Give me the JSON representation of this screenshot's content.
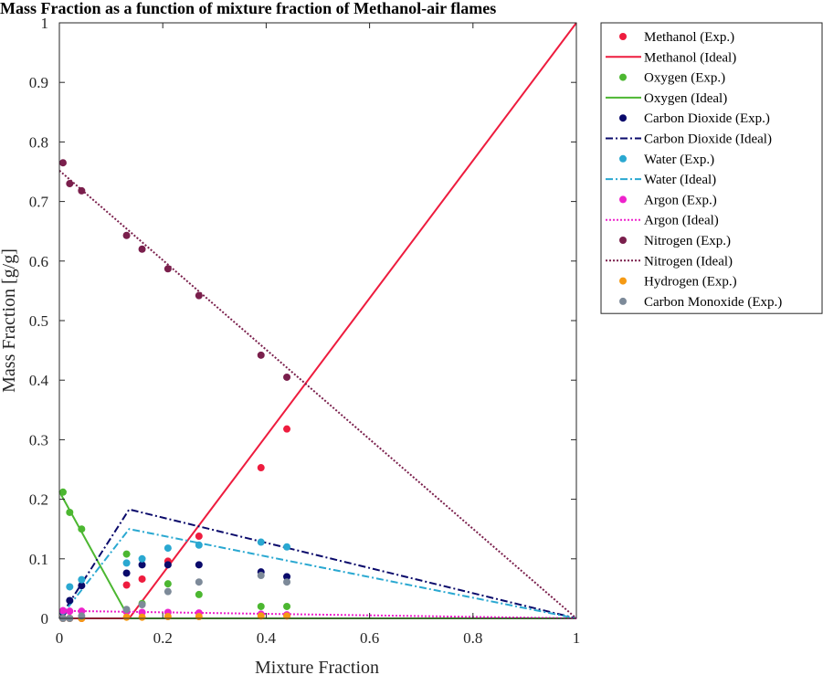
{
  "chart_data": {
    "type": "scatter",
    "title": "Mass Fraction as a function of mixture fraction of Methanol-air flames",
    "xlabel": "Mixture Fraction",
    "ylabel": "Mass Fraction [g/g]",
    "xlim": [
      0,
      1
    ],
    "ylim": [
      0,
      1
    ],
    "xticks": [
      0,
      0.2,
      0.4,
      0.6,
      0.8,
      1
    ],
    "xtick_labels": [
      "0",
      "0.2",
      "0.4",
      "0.6",
      "0.8",
      "1"
    ],
    "yticks": [
      0,
      0.1,
      0.2,
      0.3,
      0.4,
      0.5,
      0.6,
      0.7,
      0.8,
      0.9,
      1
    ],
    "ytick_labels": [
      "0",
      "0.1",
      "0.2",
      "0.3",
      "0.4",
      "0.5",
      "0.6",
      "0.7",
      "0.8",
      "0.9",
      "1"
    ],
    "grid": false,
    "legend_position": "outside-right",
    "series": [
      {
        "name": "Methanol (Exp.)",
        "kind": "points",
        "color": "#ee1c3e",
        "x": [
          0.007,
          0.02,
          0.043,
          0.13,
          0.16,
          0.21,
          0.27,
          0.39,
          0.44
        ],
        "y": [
          0.0,
          0.0,
          0.0,
          0.056,
          0.066,
          0.096,
          0.138,
          0.253,
          0.318
        ]
      },
      {
        "name": "Methanol (Ideal)",
        "kind": "line",
        "dash": "solid",
        "color": "#ee1c3e",
        "x": [
          0,
          0.135,
          1
        ],
        "y": [
          0,
          0,
          1
        ]
      },
      {
        "name": "Oxygen (Exp.)",
        "kind": "points",
        "color": "#4cb731",
        "x": [
          0.007,
          0.02,
          0.043,
          0.13,
          0.16,
          0.21,
          0.27,
          0.39,
          0.44
        ],
        "y": [
          0.212,
          0.178,
          0.15,
          0.108,
          0.025,
          0.058,
          0.04,
          0.02,
          0.02
        ]
      },
      {
        "name": "Oxygen (Ideal)",
        "kind": "line",
        "dash": "solid",
        "color": "#4cb731",
        "x": [
          0,
          0.135,
          1
        ],
        "y": [
          0.213,
          0,
          0
        ]
      },
      {
        "name": "Carbon Dioxide (Exp.)",
        "kind": "points",
        "color": "#0a0a6b",
        "x": [
          0.007,
          0.02,
          0.043,
          0.13,
          0.16,
          0.21,
          0.27,
          0.39,
          0.44
        ],
        "y": [
          0.01,
          0.03,
          0.055,
          0.076,
          0.09,
          0.09,
          0.09,
          0.078,
          0.07
        ]
      },
      {
        "name": "Carbon Dioxide (Ideal)",
        "kind": "line",
        "dash": "dashdot",
        "color": "#0a0a6b",
        "x": [
          0,
          0.135,
          1
        ],
        "y": [
          0,
          0.183,
          0
        ]
      },
      {
        "name": "Water (Exp.)",
        "kind": "points",
        "color": "#2aa8d1",
        "x": [
          0.007,
          0.02,
          0.043,
          0.13,
          0.16,
          0.21,
          0.27,
          0.39,
          0.44
        ],
        "y": [
          0.012,
          0.053,
          0.065,
          0.093,
          0.1,
          0.118,
          0.123,
          0.128,
          0.12
        ]
      },
      {
        "name": "Water (Ideal)",
        "kind": "line",
        "dash": "dashdot",
        "color": "#2aa8d1",
        "x": [
          0,
          0.135,
          1
        ],
        "y": [
          0,
          0.15,
          0
        ]
      },
      {
        "name": "Argon (Exp.)",
        "kind": "points",
        "color": "#ee22cc",
        "x": [
          0.007,
          0.02,
          0.043,
          0.13,
          0.16,
          0.21,
          0.27,
          0.39,
          0.44
        ],
        "y": [
          0.013,
          0.012,
          0.012,
          0.011,
          0.01,
          0.01,
          0.009,
          0.007,
          0.006
        ]
      },
      {
        "name": "Argon (Ideal)",
        "kind": "line",
        "dash": "dotted",
        "color": "#ee22cc",
        "x": [
          0,
          1
        ],
        "y": [
          0.0128,
          0
        ]
      },
      {
        "name": "Nitrogen (Exp.)",
        "kind": "points",
        "color": "#7a1f4c",
        "x": [
          0.007,
          0.02,
          0.043,
          0.13,
          0.16,
          0.21,
          0.27,
          0.39,
          0.44
        ],
        "y": [
          0.765,
          0.73,
          0.718,
          0.643,
          0.62,
          0.587,
          0.542,
          0.442,
          0.405
        ]
      },
      {
        "name": "Nitrogen (Ideal)",
        "kind": "line",
        "dash": "dotted",
        "color": "#7a1f4c",
        "x": [
          0,
          1
        ],
        "y": [
          0.752,
          0
        ]
      },
      {
        "name": "Hydrogen (Exp.)",
        "kind": "points",
        "color": "#f59a14",
        "x": [
          0.007,
          0.02,
          0.043,
          0.13,
          0.16,
          0.21,
          0.27,
          0.39,
          0.44
        ],
        "y": [
          0.0,
          0.0,
          0.0,
          0.002,
          0.002,
          0.003,
          0.003,
          0.004,
          0.004
        ]
      },
      {
        "name": "Carbon Monoxide (Exp.)",
        "kind": "points",
        "color": "#7d8a99",
        "x": [
          0.007,
          0.02,
          0.043,
          0.13,
          0.16,
          0.21,
          0.27,
          0.39,
          0.44
        ],
        "y": [
          0.0,
          0.0,
          0.004,
          0.015,
          0.023,
          0.045,
          0.061,
          0.072,
          0.061
        ]
      }
    ]
  }
}
